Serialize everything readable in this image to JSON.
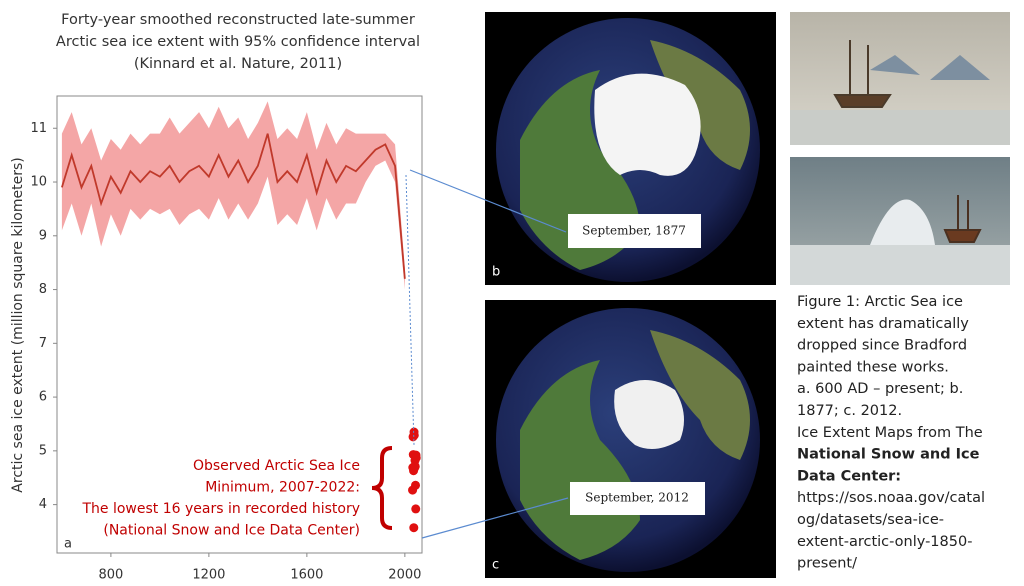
{
  "chart_data": {
    "type": "line",
    "title": [
      "Forty-year smoothed reconstructed late-summer",
      "Arctic sea ice extent with 95% confidence interval",
      "(Kinnard et al. Nature, 2011)"
    ],
    "y_label": "Arctic sea ice extent (million square kilometers)",
    "panel_label": "a",
    "x": [
      600,
      640,
      680,
      720,
      760,
      800,
      840,
      880,
      920,
      960,
      1000,
      1040,
      1080,
      1120,
      1160,
      1200,
      1240,
      1280,
      1320,
      1360,
      1400,
      1440,
      1480,
      1520,
      1560,
      1600,
      1640,
      1680,
      1720,
      1760,
      1800,
      1840,
      1880,
      1920,
      1960,
      2000
    ],
    "values": [
      9.9,
      10.5,
      9.9,
      10.3,
      9.6,
      10.1,
      9.8,
      10.2,
      10.0,
      10.2,
      10.1,
      10.3,
      10.0,
      10.2,
      10.3,
      10.1,
      10.5,
      10.1,
      10.4,
      10.0,
      10.3,
      10.9,
      10.0,
      10.2,
      10.0,
      10.5,
      9.8,
      10.4,
      10.0,
      10.3,
      10.2,
      10.4,
      10.6,
      10.7,
      10.3,
      8.2
    ],
    "color": "#c0392b",
    "band_upper": [
      10.9,
      11.3,
      10.7,
      11.0,
      10.4,
      10.8,
      10.6,
      10.9,
      10.7,
      10.9,
      10.9,
      11.2,
      10.9,
      11.1,
      11.3,
      11.0,
      11.4,
      11.0,
      11.2,
      10.8,
      11.1,
      11.5,
      10.8,
      11.0,
      10.8,
      11.3,
      10.6,
      11.1,
      10.7,
      11.0,
      10.9,
      10.9,
      10.9,
      10.9,
      10.7,
      8.4
    ],
    "band_lower": [
      9.1,
      9.6,
      9.0,
      9.6,
      8.8,
      9.4,
      9.0,
      9.5,
      9.3,
      9.5,
      9.4,
      9.5,
      9.2,
      9.4,
      9.5,
      9.3,
      9.7,
      9.3,
      9.6,
      9.3,
      9.6,
      10.1,
      9.2,
      9.4,
      9.2,
      9.7,
      9.1,
      9.7,
      9.3,
      9.6,
      9.6,
      10.0,
      10.3,
      10.4,
      10.0,
      8.0
    ],
    "band_color": "#f4a6a6",
    "observed_x": [
      2007,
      2008,
      2009,
      2010,
      2011,
      2012,
      2013,
      2014,
      2015,
      2016,
      2017,
      2018,
      2019,
      2020,
      2021,
      2022
    ],
    "observed_values": [
      4.27,
      4.69,
      5.26,
      4.93,
      4.63,
      3.57,
      5.35,
      5.29,
      4.68,
      4.72,
      4.82,
      4.71,
      4.36,
      3.92,
      4.92,
      4.87
    ],
    "observed_color": "#e01010",
    "annotation": [
      "Observed Arctic Sea Ice",
      "Minimum, 2007-2022:",
      "The lowest 16 years in recorded history",
      "(National Snow and Ice Data Center)"
    ],
    "xlim": [
      580,
      2070
    ],
    "ylim": [
      3.1,
      11.6
    ],
    "xticks": [
      800,
      1200,
      1600,
      2000
    ],
    "yticks": [
      4,
      5,
      6,
      7,
      8,
      9,
      10,
      11
    ]
  },
  "maps": [
    {
      "panel": "b",
      "label": "September, 1877"
    },
    {
      "panel": "c",
      "label": "September, 2012"
    }
  ],
  "caption": [
    "Figure 1: Arctic Sea ice",
    "extent has dramatically",
    "dropped  since Bradford",
    "painted these works.",
    "a.  600 AD – present; b.",
    "1877; c. 2012.",
    "Ice Extent Maps from The",
    "National Snow and Ice",
    "Data Center:",
    "https://sos.noaa.gov/catal",
    "og/datasets/sea-ice-",
    "extent-arctic-only-1850-",
    "present/"
  ]
}
